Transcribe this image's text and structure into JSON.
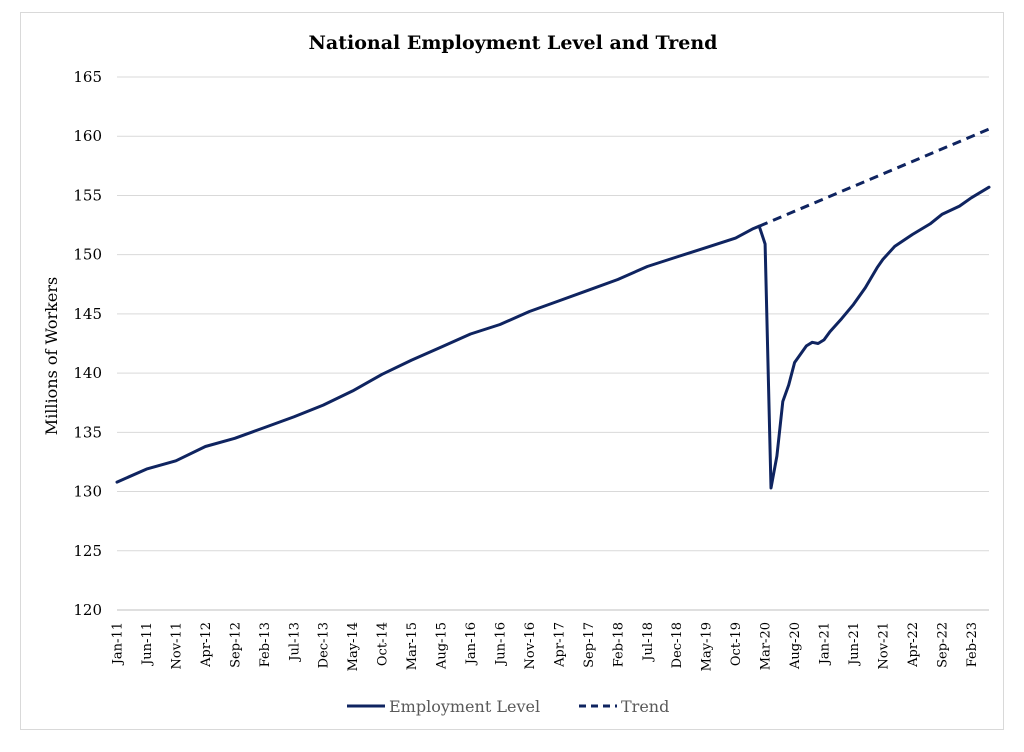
{
  "chart_data": {
    "type": "line",
    "title": "National Employment Level and Trend",
    "ylabel": "Millions of Workers",
    "xlabel": "",
    "ylim": [
      120,
      165
    ],
    "yticks": [
      120,
      125,
      130,
      135,
      140,
      145,
      150,
      155,
      160,
      165
    ],
    "x_start": "Jan-11",
    "x_end": "May-23",
    "x_tick_labels": [
      "Jan-11",
      "Jun-11",
      "Nov-11",
      "Apr-12",
      "Sep-12",
      "Feb-13",
      "Jul-13",
      "Dec-13",
      "May-14",
      "Oct-14",
      "Mar-15",
      "Aug-15",
      "Jan-16",
      "Jun-16",
      "Nov-16",
      "Apr-17",
      "Sep-17",
      "Feb-18",
      "Jul-18",
      "Dec-18",
      "May-19",
      "Oct-19",
      "Mar-20",
      "Aug-20",
      "Jan-21",
      "Jun-21",
      "Nov-21",
      "Apr-22",
      "Sep-22",
      "Feb-23"
    ],
    "grid": "horizontal",
    "legend_position": "bottom",
    "colors": {
      "series": "#0f2460",
      "grid": "#d9d9d9"
    },
    "series": [
      {
        "name": "Employment Level",
        "style": "solid",
        "points": [
          [
            "Jan-11",
            130.8
          ],
          [
            "Jun-11",
            131.9
          ],
          [
            "Nov-11",
            132.6
          ],
          [
            "Apr-12",
            133.8
          ],
          [
            "Sep-12",
            134.5
          ],
          [
            "Feb-13",
            135.4
          ],
          [
            "Jul-13",
            136.3
          ],
          [
            "Dec-13",
            137.3
          ],
          [
            "May-14",
            138.5
          ],
          [
            "Oct-14",
            139.9
          ],
          [
            "Mar-15",
            141.1
          ],
          [
            "Aug-15",
            142.2
          ],
          [
            "Jan-16",
            143.3
          ],
          [
            "Jun-16",
            144.1
          ],
          [
            "Nov-16",
            145.2
          ],
          [
            "Apr-17",
            146.1
          ],
          [
            "Sep-17",
            147.0
          ],
          [
            "Feb-18",
            147.9
          ],
          [
            "Jul-18",
            149.0
          ],
          [
            "Dec-18",
            149.8
          ],
          [
            "May-19",
            150.6
          ],
          [
            "Oct-19",
            151.4
          ],
          [
            "Jan-20",
            152.2
          ],
          [
            "Feb-20",
            152.4
          ],
          [
            "Mar-20",
            150.9
          ],
          [
            "Apr-20",
            130.3
          ],
          [
            "May-20",
            133.0
          ],
          [
            "Jun-20",
            137.6
          ],
          [
            "Jul-20",
            139.0
          ],
          [
            "Aug-20",
            140.9
          ],
          [
            "Oct-20",
            142.3
          ],
          [
            "Nov-20",
            142.6
          ],
          [
            "Dec-20",
            142.5
          ],
          [
            "Jan-21",
            142.8
          ],
          [
            "Feb-21",
            143.5
          ],
          [
            "Apr-21",
            144.6
          ],
          [
            "Jun-21",
            145.8
          ],
          [
            "Aug-21",
            147.2
          ],
          [
            "Oct-21",
            148.9
          ],
          [
            "Nov-21",
            149.6
          ],
          [
            "Jan-22",
            150.7
          ],
          [
            "Apr-22",
            151.7
          ],
          [
            "Jul-22",
            152.6
          ],
          [
            "Sep-22",
            153.4
          ],
          [
            "Dec-22",
            154.1
          ],
          [
            "Feb-23",
            154.8
          ],
          [
            "May-23",
            155.7
          ]
        ]
      },
      {
        "name": "Trend",
        "style": "dashed",
        "points": [
          [
            "Feb-20",
            152.4
          ],
          [
            "May-23",
            160.6
          ]
        ]
      }
    ]
  }
}
